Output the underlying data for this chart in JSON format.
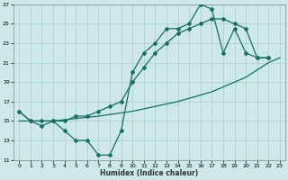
{
  "xlabel": "Humidex (Indice chaleur)",
  "bg_color": "#cce8e8",
  "grid_color": "#aacccc",
  "line_color": "#1a6e64",
  "xlim": [
    -0.5,
    23.5
  ],
  "ylim": [
    11,
    27
  ],
  "xticks": [
    0,
    1,
    2,
    3,
    4,
    5,
    6,
    7,
    8,
    9,
    10,
    11,
    12,
    13,
    14,
    15,
    16,
    17,
    18,
    19,
    20,
    21,
    22,
    23
  ],
  "yticks": [
    11,
    13,
    15,
    17,
    19,
    21,
    23,
    25,
    27
  ],
  "series1": [
    [
      0,
      16
    ],
    [
      1,
      15
    ],
    [
      2,
      15
    ],
    [
      3,
      15
    ],
    [
      4,
      14
    ],
    [
      5,
      13
    ],
    [
      6,
      13
    ],
    [
      7,
      11.5
    ],
    [
      8,
      11.5
    ],
    [
      9,
      14
    ],
    [
      10,
      20
    ],
    [
      11,
      22
    ],
    [
      12,
      23
    ],
    [
      13,
      24.5
    ],
    [
      14,
      24.5
    ],
    [
      15,
      25
    ],
    [
      16,
      27
    ],
    [
      17,
      26.5
    ],
    [
      18,
      22
    ],
    [
      19,
      24.5
    ],
    [
      20,
      22
    ],
    [
      21,
      21.5
    ],
    [
      22,
      21.5
    ]
  ],
  "series2": [
    [
      0,
      16
    ],
    [
      1,
      15
    ],
    [
      2,
      14.5
    ],
    [
      3,
      15
    ],
    [
      4,
      15
    ],
    [
      5,
      15.5
    ],
    [
      6,
      15.5
    ],
    [
      7,
      16
    ],
    [
      8,
      16.5
    ],
    [
      9,
      17
    ],
    [
      10,
      19
    ],
    [
      11,
      20.5
    ],
    [
      12,
      22
    ],
    [
      13,
      23
    ],
    [
      14,
      24
    ],
    [
      15,
      24.5
    ],
    [
      16,
      25
    ],
    [
      17,
      25.5
    ],
    [
      18,
      25.5
    ],
    [
      19,
      25
    ],
    [
      20,
      24.5
    ],
    [
      21,
      21.5
    ],
    [
      22,
      21.5
    ]
  ],
  "series3": [
    [
      0,
      15
    ],
    [
      3,
      15
    ],
    [
      7,
      15.5
    ],
    [
      10,
      16
    ],
    [
      14,
      17
    ],
    [
      17,
      18
    ],
    [
      20,
      19.5
    ],
    [
      22,
      21
    ],
    [
      23,
      21.5
    ]
  ]
}
